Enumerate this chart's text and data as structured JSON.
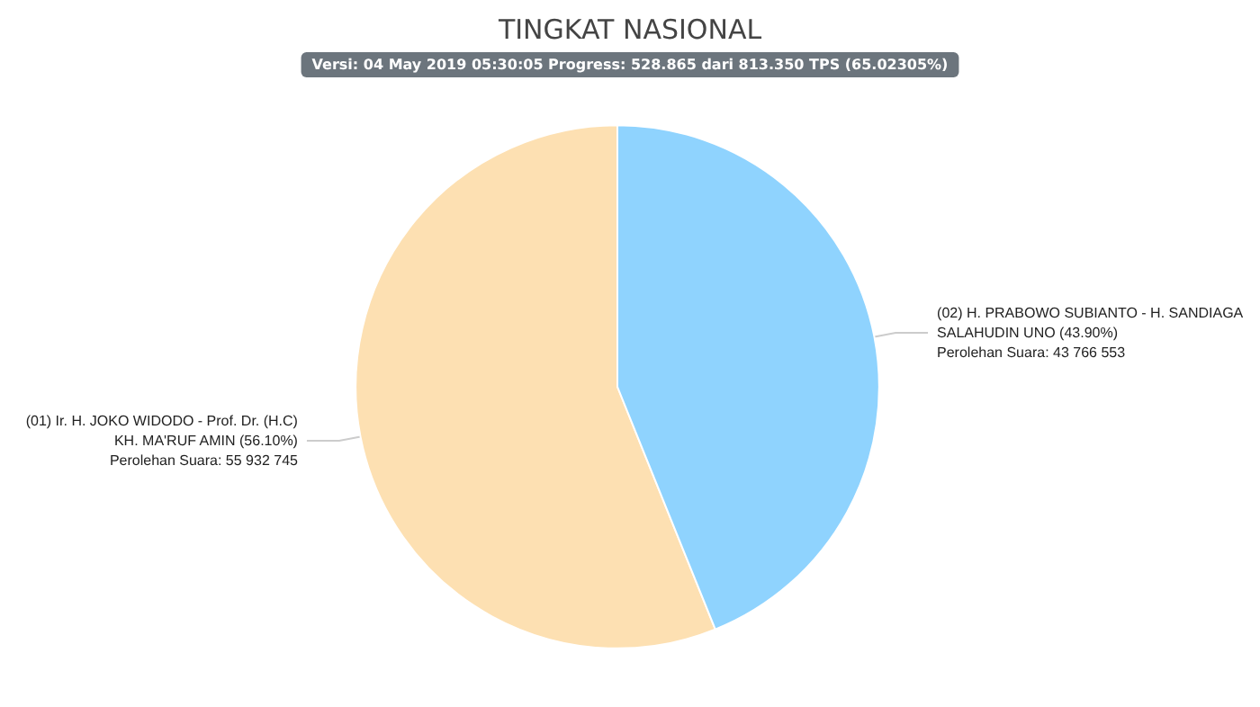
{
  "chart_data": {
    "type": "pie",
    "title": "TINGKAT NASIONAL",
    "subtitle": "Versi: 04 May 2019 05:30:05 Progress: 528.865 dari 813.350 TPS (65.02305%)",
    "categories": [
      "(01) Ir. H. JOKO WIDODO - Prof. Dr. (H.C)\nKH. MA'RUF AMIN (56.10%)",
      "(02) H. PRABOWO SUBIANTO - H. SANDIAGA\nSALAHUDIN UNO (43.90%)"
    ],
    "values": [
      55932745,
      43766553
    ],
    "value_labels": [
      "Perolehan Suara: 55 932 745",
      "Perolehan Suara: 43 766 553"
    ],
    "colors": [
      "#fde0b2",
      "#8fd3fe"
    ],
    "legend": false
  }
}
